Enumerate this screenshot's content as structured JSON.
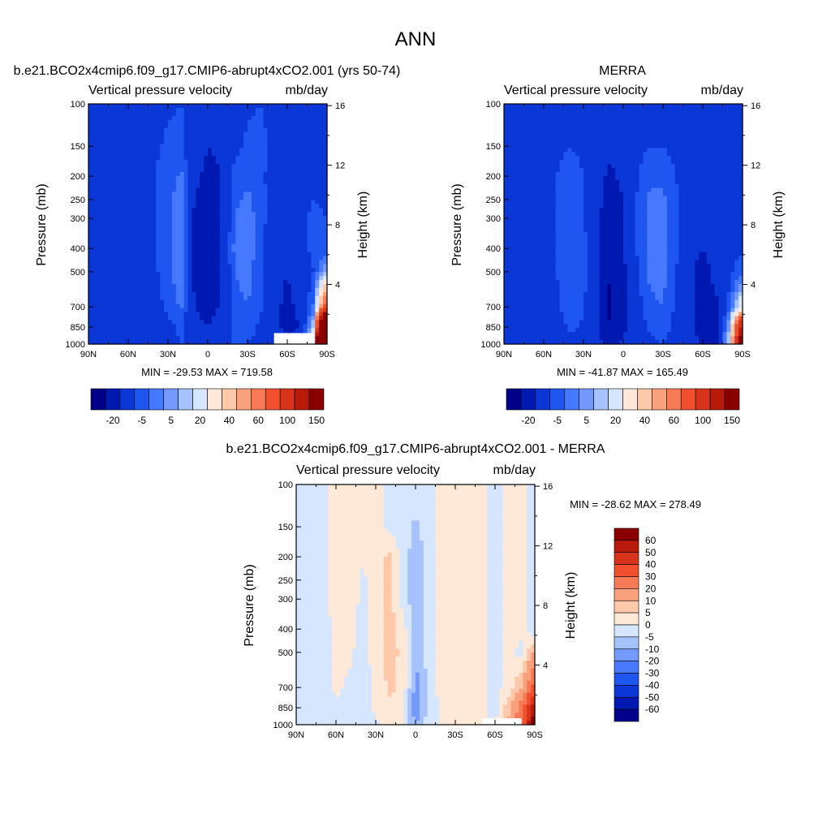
{
  "page_title": "ANN",
  "color_scales": {
    "top": {
      "colors": [
        "#00008a",
        "#0019b0",
        "#0a37d6",
        "#1f56f0",
        "#4679ff",
        "#7399fc",
        "#a6c2fa",
        "#d7e6ff",
        "#fee9d8",
        "#fdc9aa",
        "#f9a07c",
        "#f57a55",
        "#f0502e",
        "#d8341b",
        "#b81b0b",
        "#8a0000"
      ],
      "tick_labels": [
        "-20",
        "-5",
        "5",
        "20",
        "40",
        "60",
        "100",
        "150"
      ],
      "tick_after_index": [
        1,
        3,
        5,
        7,
        9,
        11,
        13,
        15
      ]
    },
    "diff": {
      "colors": [
        "#00008a",
        "#0019b0",
        "#0a37d6",
        "#1f56f0",
        "#4679ff",
        "#7399fc",
        "#a6c2fa",
        "#d7e6ff",
        "#fee9d8",
        "#fdc9aa",
        "#f9a07c",
        "#f57a55",
        "#f0502e",
        "#d8341b",
        "#b81b0b",
        "#8a0000"
      ],
      "tick_labels": [
        "-60",
        "-50",
        "-40",
        "-30",
        "-20",
        "-10",
        "-5",
        "0",
        "5",
        "10",
        "20",
        "30",
        "40",
        "50",
        "60"
      ]
    }
  },
  "chart_data": [
    {
      "type": "heatmap",
      "title": "b.e21.BCO2x4cmip6.f09_g17.CMIP6-abrupt4xCO2.001 (yrs 50-74)",
      "left_subtitle": "Vertical pressure velocity",
      "right_subtitle": "mb/day",
      "ylabel": "Pressure (mb)",
      "ylabel_right": "Height (km)",
      "x_ticks": [
        "90N",
        "60N",
        "30N",
        "0",
        "30S",
        "60S",
        "90S"
      ],
      "y_ticks": [
        "100",
        "150",
        "200",
        "250",
        "300",
        "400",
        "500",
        "700",
        "850",
        "1000"
      ],
      "y_right_ticks": [
        "16",
        "12",
        "8",
        "4"
      ],
      "xlim": [
        90,
        -90
      ],
      "ylim": [
        1000,
        100
      ],
      "stats": "MIN = -29.53  MAX = 719.58",
      "field": {
        "x": [
          90,
          80,
          70,
          60,
          50,
          40,
          30,
          20,
          10,
          0,
          -10,
          -20,
          -30,
          -40,
          -50,
          -60,
          -70,
          -80,
          -90
        ],
        "p": [
          100,
          150,
          200,
          250,
          300,
          400,
          500,
          700,
          850,
          1000
        ],
        "values": [
          [
            -12,
            -12,
            -12,
            -12,
            -12,
            -11,
            -11,
            -10,
            -14,
            -17,
            -18,
            -13,
            -11,
            -10,
            -12,
            -18,
            -15,
            -13,
            -14
          ],
          [
            -12,
            -12,
            -12,
            -12,
            -12,
            -11,
            -9,
            -8,
            -16,
            -20,
            -19,
            -12,
            -9,
            -8,
            -12,
            -18,
            -15,
            -12,
            -13
          ],
          [
            -12,
            -12,
            -13,
            -12,
            -12,
            -10,
            -8,
            -4,
            -18,
            -22,
            -20,
            -8,
            -6,
            -8,
            -14,
            -19,
            -13,
            -11,
            -12
          ],
          [
            -12,
            -12,
            -13,
            -12,
            -12,
            -10,
            -7,
            -1,
            -20,
            -25,
            -20,
            -6,
            -4,
            -7,
            -15,
            -18,
            -12,
            -10,
            -11
          ],
          [
            -12,
            -12,
            -13,
            -12,
            -12,
            -10,
            -7,
            0,
            -22,
            -26,
            -20,
            -5,
            -3,
            -7,
            -15,
            -17,
            -11,
            -9,
            -10
          ],
          [
            -12,
            -13,
            -13,
            -12,
            -12,
            -11,
            -7,
            1,
            -22,
            -28,
            -20,
            -4,
            -2,
            -8,
            -16,
            -17,
            -11,
            -9,
            -10
          ],
          [
            -13,
            -15,
            -14,
            -12,
            -12,
            -11,
            -7,
            0,
            -22,
            -28,
            -20,
            -5,
            -3,
            -8,
            -17,
            -20,
            -14,
            -10,
            8
          ],
          [
            -16,
            -18,
            -15,
            -12,
            -12,
            -12,
            -9,
            -4,
            -20,
            -26,
            -18,
            -7,
            -5,
            -9,
            -18,
            -22,
            -18,
            -4,
            80
          ],
          [
            -18,
            -20,
            -16,
            -13,
            -14,
            -14,
            -12,
            -8,
            -16,
            -20,
            -14,
            -9,
            -8,
            -11,
            -18,
            -22,
            -20,
            10,
            300
          ],
          [
            -16,
            -18,
            -15,
            -14,
            -14,
            -14,
            -13,
            -10,
            -14,
            -18,
            -12,
            -10,
            -10,
            -12,
            -16,
            -18,
            -16,
            20,
            600
          ]
        ]
      },
      "mask_region": {
        "x_from": -50,
        "x_to": -80,
        "p_from": 1000,
        "p_to": 900
      }
    },
    {
      "type": "heatmap",
      "title": "MERRA",
      "left_subtitle": "Vertical pressure velocity",
      "right_subtitle": "mb/day",
      "ylabel": "Pressure (mb)",
      "ylabel_right": "Height (km)",
      "x_ticks": [
        "90N",
        "60N",
        "30N",
        "0",
        "30S",
        "60S",
        "90S"
      ],
      "y_ticks": [
        "100",
        "150",
        "200",
        "250",
        "300",
        "400",
        "500",
        "700",
        "850",
        "1000"
      ],
      "y_right_ticks": [
        "16",
        "12",
        "8",
        "4"
      ],
      "xlim": [
        90,
        -90
      ],
      "ylim": [
        1000,
        100
      ],
      "stats": "MIN = -41.87  MAX = 165.49",
      "field": {
        "x": [
          90,
          80,
          70,
          60,
          50,
          40,
          30,
          20,
          10,
          0,
          -10,
          -20,
          -30,
          -40,
          -50,
          -60,
          -70,
          -80,
          -90
        ],
        "p": [
          100,
          150,
          200,
          250,
          300,
          400,
          500,
          700,
          850,
          1000
        ],
        "values": [
          [
            -13,
            -13,
            -13,
            -12,
            -12,
            -12,
            -12,
            -13,
            -15,
            -14,
            -12,
            -11,
            -11,
            -12,
            -13,
            -15,
            -15,
            -14,
            -14
          ],
          [
            -14,
            -14,
            -13,
            -12,
            -11,
            -10,
            -11,
            -14,
            -18,
            -16,
            -12,
            -10,
            -10,
            -12,
            -14,
            -16,
            -15,
            -14,
            -14
          ],
          [
            -15,
            -14,
            -13,
            -12,
            -10,
            -8,
            -10,
            -16,
            -22,
            -18,
            -11,
            -6,
            -6,
            -10,
            -15,
            -17,
            -15,
            -13,
            -13
          ],
          [
            -15,
            -14,
            -13,
            -12,
            -10,
            -7,
            -9,
            -17,
            -24,
            -20,
            -10,
            -4,
            -4,
            -9,
            -15,
            -18,
            -14,
            -12,
            -12
          ],
          [
            -15,
            -14,
            -13,
            -12,
            -10,
            -6,
            -9,
            -18,
            -26,
            -20,
            -10,
            -3,
            -3,
            -9,
            -16,
            -18,
            -14,
            -12,
            -12
          ],
          [
            -16,
            -15,
            -14,
            -12,
            -10,
            -5,
            -8,
            -18,
            -28,
            -21,
            -10,
            -3,
            -2,
            -9,
            -17,
            -20,
            -15,
            -12,
            -11
          ],
          [
            -17,
            -16,
            -14,
            -12,
            -10,
            -5,
            -8,
            -18,
            -30,
            -22,
            -11,
            -4,
            -3,
            -10,
            -18,
            -24,
            -17,
            -12,
            -6
          ],
          [
            -18,
            -18,
            -15,
            -13,
            -11,
            -6,
            -9,
            -18,
            -32,
            -24,
            -13,
            -6,
            -5,
            -11,
            -18,
            -26,
            -22,
            -8,
            20
          ],
          [
            -20,
            -20,
            -17,
            -14,
            -13,
            -9,
            -11,
            -18,
            -30,
            -22,
            -15,
            -9,
            -8,
            -12,
            -18,
            -26,
            -30,
            5,
            120
          ],
          [
            -18,
            -18,
            -16,
            -15,
            -14,
            -12,
            -12,
            -16,
            -24,
            -18,
            -14,
            -11,
            -10,
            -12,
            -16,
            -20,
            -22,
            10,
            160
          ]
        ]
      }
    },
    {
      "type": "heatmap",
      "title": "b.e21.BCO2x4cmip6.f09_g17.CMIP6-abrupt4xCO2.001 - MERRA",
      "left_subtitle": "Vertical pressure velocity",
      "right_subtitle": "mb/day",
      "ylabel": "Pressure (mb)",
      "ylabel_right": "Height (km)",
      "x_ticks": [
        "90N",
        "60N",
        "30N",
        "0",
        "30S",
        "60S",
        "90S"
      ],
      "y_ticks": [
        "100",
        "150",
        "200",
        "250",
        "300",
        "400",
        "500",
        "700",
        "850",
        "1000"
      ],
      "y_right_ticks": [
        "16",
        "12",
        "8",
        "4"
      ],
      "xlim": [
        90,
        -90
      ],
      "ylim": [
        1000,
        100
      ],
      "stats": "MIN = -28.62  MAX = 278.49",
      "field": {
        "x": [
          90,
          80,
          70,
          60,
          50,
          40,
          30,
          20,
          10,
          0,
          -10,
          -20,
          -30,
          -40,
          -50,
          -60,
          -70,
          -80,
          -90
        ],
        "p": [
          100,
          150,
          200,
          250,
          300,
          400,
          500,
          700,
          850,
          1000
        ],
        "values": [
          [
            -2,
            -2,
            -1,
            2,
            2,
            2,
            1,
            -1,
            -2,
            -3,
            -2,
            2,
            2,
            2,
            2,
            -2,
            2,
            2,
            -2
          ],
          [
            -2,
            -2,
            -1,
            2,
            2,
            2,
            1,
            -1,
            -2,
            -6,
            -2,
            2,
            2,
            2,
            2,
            -2,
            2,
            2,
            -2
          ],
          [
            -2,
            -2,
            -1,
            2,
            2,
            1,
            2,
            6,
            -2,
            -8,
            -3,
            2,
            2,
            2,
            2,
            -2,
            2,
            2,
            -2
          ],
          [
            -2,
            -2,
            -1,
            2,
            2,
            -1,
            2,
            7,
            -2,
            -8,
            -3,
            2,
            2,
            2,
            2,
            -2,
            2,
            2,
            -2
          ],
          [
            -2,
            -2,
            -1,
            2,
            2,
            -1,
            2,
            8,
            -2,
            -8,
            -3,
            2,
            2,
            2,
            2,
            -2,
            2,
            2,
            -2
          ],
          [
            -2,
            -2,
            -2,
            1,
            1,
            -1,
            2,
            7,
            3,
            -9,
            -3,
            2,
            2,
            2,
            2,
            -2,
            2,
            2,
            -4
          ],
          [
            -2,
            -2,
            -2,
            1,
            1,
            -2,
            2,
            7,
            4,
            -10,
            -3,
            2,
            2,
            2,
            2,
            -2,
            2,
            -2,
            12
          ],
          [
            -2,
            -2,
            -2,
            1,
            -1,
            -2,
            1,
            6,
            4,
            -12,
            -3,
            2,
            2,
            2,
            2,
            -2,
            2,
            10,
            35
          ],
          [
            -2,
            -3,
            -2,
            -1,
            -2,
            -2,
            1,
            4,
            3,
            -14,
            -3,
            1,
            1,
            1,
            1,
            -2,
            8,
            25,
            60
          ],
          [
            -3,
            -3,
            -2,
            -2,
            -2,
            -2,
            -1,
            1,
            1,
            -10,
            -2,
            1,
            1,
            1,
            1,
            -1,
            10,
            30,
            70
          ]
        ]
      },
      "mask_region": {
        "x_from": -50,
        "x_to": -80,
        "p_from": 1000,
        "p_to": 940
      }
    }
  ]
}
